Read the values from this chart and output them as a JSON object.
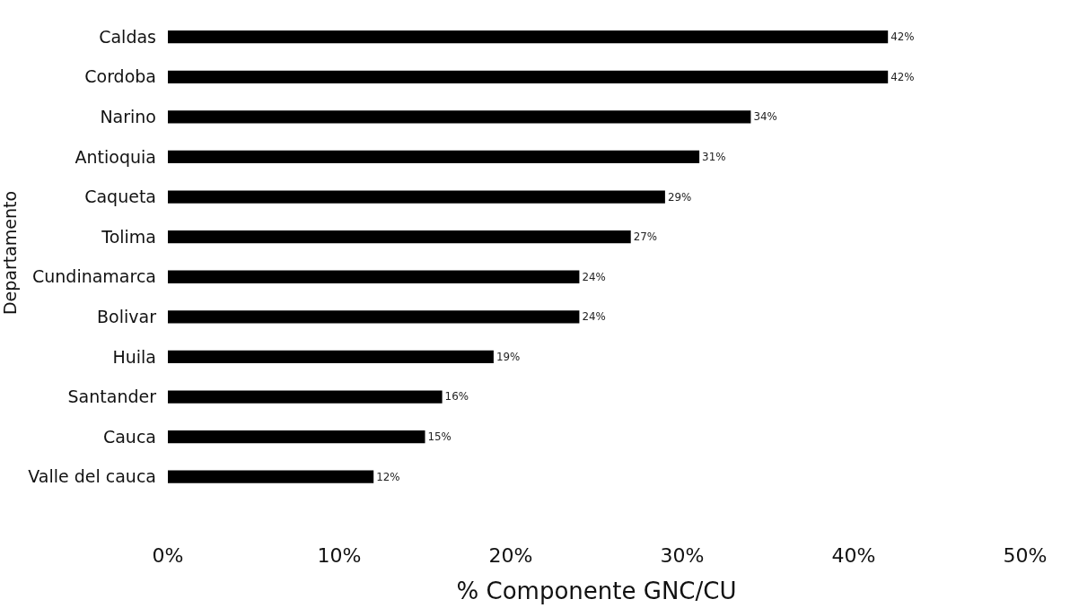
{
  "chart_data": {
    "type": "bar",
    "orientation": "horizontal",
    "xlabel": "% Componente GNC/CU",
    "ylabel": "Departamento",
    "categories": [
      "Caldas",
      "Cordoba",
      "Narino",
      "Antioquia",
      "Caqueta",
      "Tolima",
      "Cundinamarca",
      "Bolivar",
      "Huila",
      "Santander",
      "Cauca",
      "Valle del cauca"
    ],
    "values": [
      42,
      42,
      34,
      31,
      29,
      27,
      24,
      24,
      19,
      16,
      15,
      12
    ],
    "value_labels": [
      "42%",
      "42%",
      "34%",
      "31%",
      "29%",
      "27%",
      "24%",
      "24%",
      "19%",
      "16%",
      "15%",
      "12%"
    ],
    "color": "#000000",
    "xlim": [
      0,
      50
    ],
    "xticks": [
      {
        "value": 0,
        "label": "0%"
      },
      {
        "value": 10,
        "label": "10%"
      },
      {
        "value": 20,
        "label": "20%"
      },
      {
        "value": 30,
        "label": "30%"
      },
      {
        "value": 40,
        "label": "40%"
      },
      {
        "value": 50,
        "label": "50%"
      }
    ]
  }
}
